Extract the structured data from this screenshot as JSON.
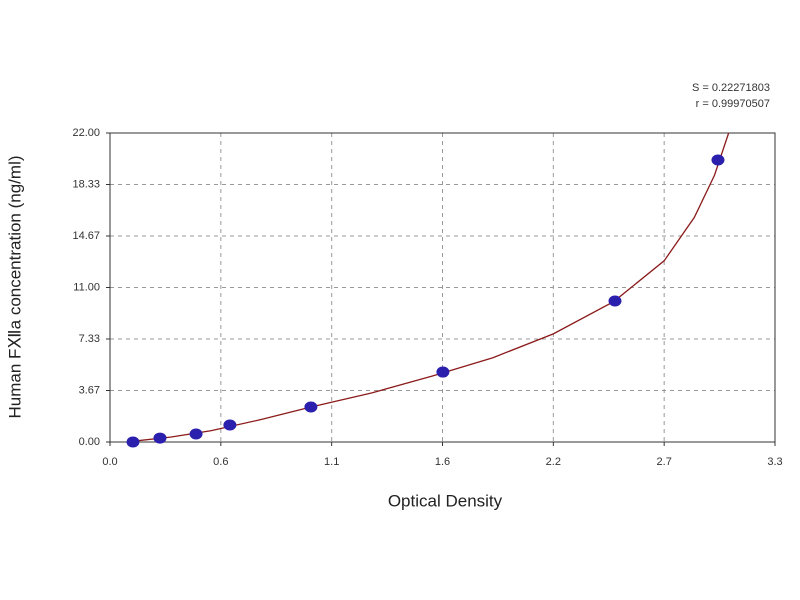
{
  "chart_data": {
    "type": "scatter",
    "x_label": "Optical Density",
    "y_label": "Human FⅫa concentration (ng/ml)",
    "annotations": [
      "S = 0.22271803",
      "r = 0.99970507"
    ],
    "xlim": [
      0,
      3.3
    ],
    "ylim": [
      0,
      22
    ],
    "xticks": [
      {
        "value": 0,
        "label": "0.0"
      },
      {
        "value": 0.55,
        "label": "0.6"
      },
      1.1,
      {
        "value": 1.65,
        "label": "1.6"
      },
      2.2,
      {
        "value": 2.75,
        "label": "2.7"
      },
      3.3
    ],
    "yticks": [
      {
        "value": 0,
        "label": "0.00"
      },
      {
        "value": 3.6667,
        "label": "3.67"
      },
      {
        "value": 7.3333,
        "label": "7.33"
      },
      {
        "value": 11,
        "label": "11.00"
      },
      {
        "value": 14.6667,
        "label": "14.67"
      },
      {
        "value": 18.3333,
        "label": "18.33"
      },
      {
        "value": 22,
        "label": "22.00"
      }
    ],
    "grid": true,
    "series": [
      {
        "color": "#2b1fae",
        "x": [
          0.114,
          0.248,
          0.427,
          0.595,
          0.997,
          1.652,
          2.506,
          3.017
        ],
        "values": [
          0,
          0.28,
          0.57,
          1.21,
          2.49,
          4.98,
          10.04,
          20.08
        ]
      }
    ],
    "fit": {
      "color": "#8b1a1a",
      "x": [
        0.11,
        0.3,
        0.5,
        0.75,
        1.0,
        1.3,
        1.6,
        1.9,
        2.2,
        2.5,
        2.75,
        2.9,
        3.0,
        3.07
      ],
      "values": [
        0.05,
        0.35,
        0.8,
        1.6,
        2.5,
        3.5,
        4.7,
        6.0,
        7.7,
        10.0,
        12.9,
        16.0,
        19.0,
        22.0
      ]
    }
  }
}
